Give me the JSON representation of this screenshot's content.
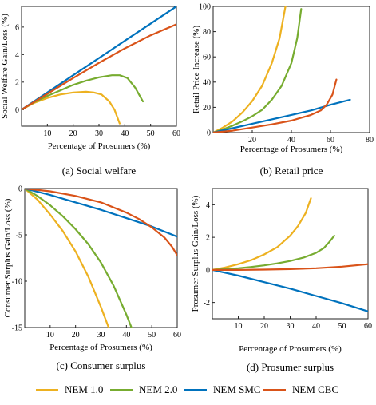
{
  "chart_data": [
    {
      "type": "line",
      "caption": "(a) Social welfare",
      "xlabel": "Percentage of Prosumers (%)",
      "ylabel": "Social Welfare Gain/Loss (%)",
      "xlim": [
        0,
        60
      ],
      "ylim": [
        -1.2,
        7.5
      ],
      "xticks": [
        10,
        20,
        30,
        40,
        50,
        60
      ],
      "yticks": [
        0,
        2,
        4,
        6
      ],
      "series": [
        {
          "name": "NEM 1.0",
          "x": [
            0,
            5,
            10,
            15,
            20,
            25,
            28,
            31,
            34,
            36,
            38
          ],
          "y": [
            0,
            0.5,
            0.85,
            1.1,
            1.25,
            1.3,
            1.25,
            1.1,
            0.6,
            0.0,
            -1.0
          ]
        },
        {
          "name": "NEM 2.0",
          "x": [
            0,
            5,
            10,
            15,
            20,
            25,
            30,
            35,
            38,
            41,
            44,
            47
          ],
          "y": [
            0,
            0.55,
            1.0,
            1.4,
            1.8,
            2.1,
            2.35,
            2.5,
            2.5,
            2.3,
            1.6,
            0.6
          ]
        },
        {
          "name": "NEM SMC",
          "x": [
            0,
            10,
            20,
            30,
            40,
            50,
            60
          ],
          "y": [
            0,
            1.25,
            2.5,
            3.75,
            5.0,
            6.25,
            7.5
          ]
        },
        {
          "name": "NEM CBC",
          "x": [
            0,
            10,
            20,
            30,
            40,
            50,
            60
          ],
          "y": [
            0,
            1.15,
            2.3,
            3.4,
            4.45,
            5.4,
            6.2
          ]
        }
      ]
    },
    {
      "type": "line",
      "caption": "(b) Retail price",
      "xlabel": "Percentage of Prosumers (%)",
      "ylabel": "Retail Price Increase (%)",
      "xlim": [
        0,
        80
      ],
      "ylim": [
        0,
        100
      ],
      "xticks": [
        20,
        40,
        60,
        80
      ],
      "yticks": [
        0,
        20,
        40,
        60,
        80,
        100
      ],
      "series": [
        {
          "name": "NEM 1.0",
          "x": [
            0,
            5,
            10,
            15,
            20,
            25,
            30,
            34,
            37
          ],
          "y": [
            0,
            4,
            9,
            16,
            25,
            37,
            55,
            75,
            100
          ]
        },
        {
          "name": "NEM 2.0",
          "x": [
            0,
            5,
            10,
            15,
            20,
            25,
            30,
            35,
            40,
            43,
            45
          ],
          "y": [
            0,
            2.5,
            5.5,
            9,
            13,
            18,
            26,
            37,
            55,
            75,
            98
          ]
        },
        {
          "name": "NEM SMC",
          "x": [
            0,
            10,
            20,
            30,
            40,
            50,
            60,
            70
          ],
          "y": [
            0,
            3.5,
            7,
            10.5,
            14,
            17.5,
            22,
            26
          ]
        },
        {
          "name": "NEM CBC",
          "x": [
            0,
            10,
            20,
            30,
            40,
            50,
            55,
            58,
            61,
            63
          ],
          "y": [
            0,
            1.5,
            4,
            6.5,
            9.5,
            14,
            17.5,
            22,
            30,
            42
          ]
        }
      ]
    },
    {
      "type": "line",
      "caption": "(c) Consumer surplus",
      "xlabel": "Percentage of Prosumers (%)",
      "ylabel": "Consumer Surplus Gain/Loss (%)",
      "xlim": [
        0,
        60
      ],
      "ylim": [
        -15,
        0
      ],
      "xticks": [
        10,
        20,
        30,
        40,
        50,
        60
      ],
      "yticks": [
        0,
        -5,
        -10,
        -15
      ],
      "series": [
        {
          "name": "NEM 1.0",
          "x": [
            0,
            5,
            10,
            15,
            20,
            25,
            30,
            33
          ],
          "y": [
            0,
            -1.2,
            -2.8,
            -4.6,
            -6.8,
            -9.5,
            -12.8,
            -15
          ]
        },
        {
          "name": "NEM 2.0",
          "x": [
            0,
            5,
            10,
            15,
            20,
            25,
            30,
            35,
            40,
            42
          ],
          "y": [
            0,
            -0.8,
            -1.8,
            -3.0,
            -4.4,
            -6.0,
            -8.0,
            -10.5,
            -13.6,
            -15
          ]
        },
        {
          "name": "NEM SMC",
          "x": [
            0,
            10,
            20,
            30,
            40,
            50,
            60
          ],
          "y": [
            0,
            -0.7,
            -1.5,
            -2.3,
            -3.2,
            -4.1,
            -5.2
          ]
        },
        {
          "name": "NEM CBC",
          "x": [
            0,
            10,
            20,
            30,
            40,
            45,
            50,
            55,
            58,
            60
          ],
          "y": [
            0,
            -0.3,
            -0.8,
            -1.5,
            -2.6,
            -3.3,
            -4.2,
            -5.3,
            -6.3,
            -7.2
          ]
        }
      ]
    },
    {
      "type": "line",
      "caption": "(d) Prosumer surplus",
      "xlabel": "Percentage of Prosumers (%)",
      "ylabel": "Prosumer Surplus Gain/Loss (%)",
      "xlim": [
        0,
        60
      ],
      "ylim": [
        -3,
        5
      ],
      "xticks": [
        10,
        20,
        30,
        40,
        50,
        60
      ],
      "yticks": [
        4,
        2,
        0,
        -2
      ],
      "series": [
        {
          "name": "NEM 1.0",
          "x": [
            0,
            5,
            10,
            15,
            20,
            25,
            30,
            33,
            36,
            38
          ],
          "y": [
            0,
            0.15,
            0.35,
            0.6,
            0.95,
            1.4,
            2.1,
            2.7,
            3.5,
            4.4
          ]
        },
        {
          "name": "NEM 2.0",
          "x": [
            0,
            5,
            10,
            15,
            20,
            25,
            30,
            35,
            40,
            43,
            45,
            47
          ],
          "y": [
            0,
            0.05,
            0.1,
            0.18,
            0.28,
            0.4,
            0.55,
            0.75,
            1.05,
            1.35,
            1.7,
            2.1
          ]
        },
        {
          "name": "NEM SMC",
          "x": [
            0,
            10,
            20,
            30,
            40,
            50,
            60
          ],
          "y": [
            0,
            -0.35,
            -0.75,
            -1.15,
            -1.6,
            -2.05,
            -2.55
          ]
        },
        {
          "name": "NEM CBC",
          "x": [
            0,
            10,
            20,
            30,
            40,
            50,
            60
          ],
          "y": [
            0,
            0.0,
            0.02,
            0.05,
            0.1,
            0.2,
            0.35
          ]
        }
      ]
    }
  ],
  "legend": [
    {
      "name": "NEM 1.0",
      "color": "#EDB120"
    },
    {
      "name": "NEM 2.0",
      "color": "#77AC30"
    },
    {
      "name": "NEM SMC",
      "color": "#0072BD"
    },
    {
      "name": "NEM CBC",
      "color": "#D95319"
    }
  ]
}
